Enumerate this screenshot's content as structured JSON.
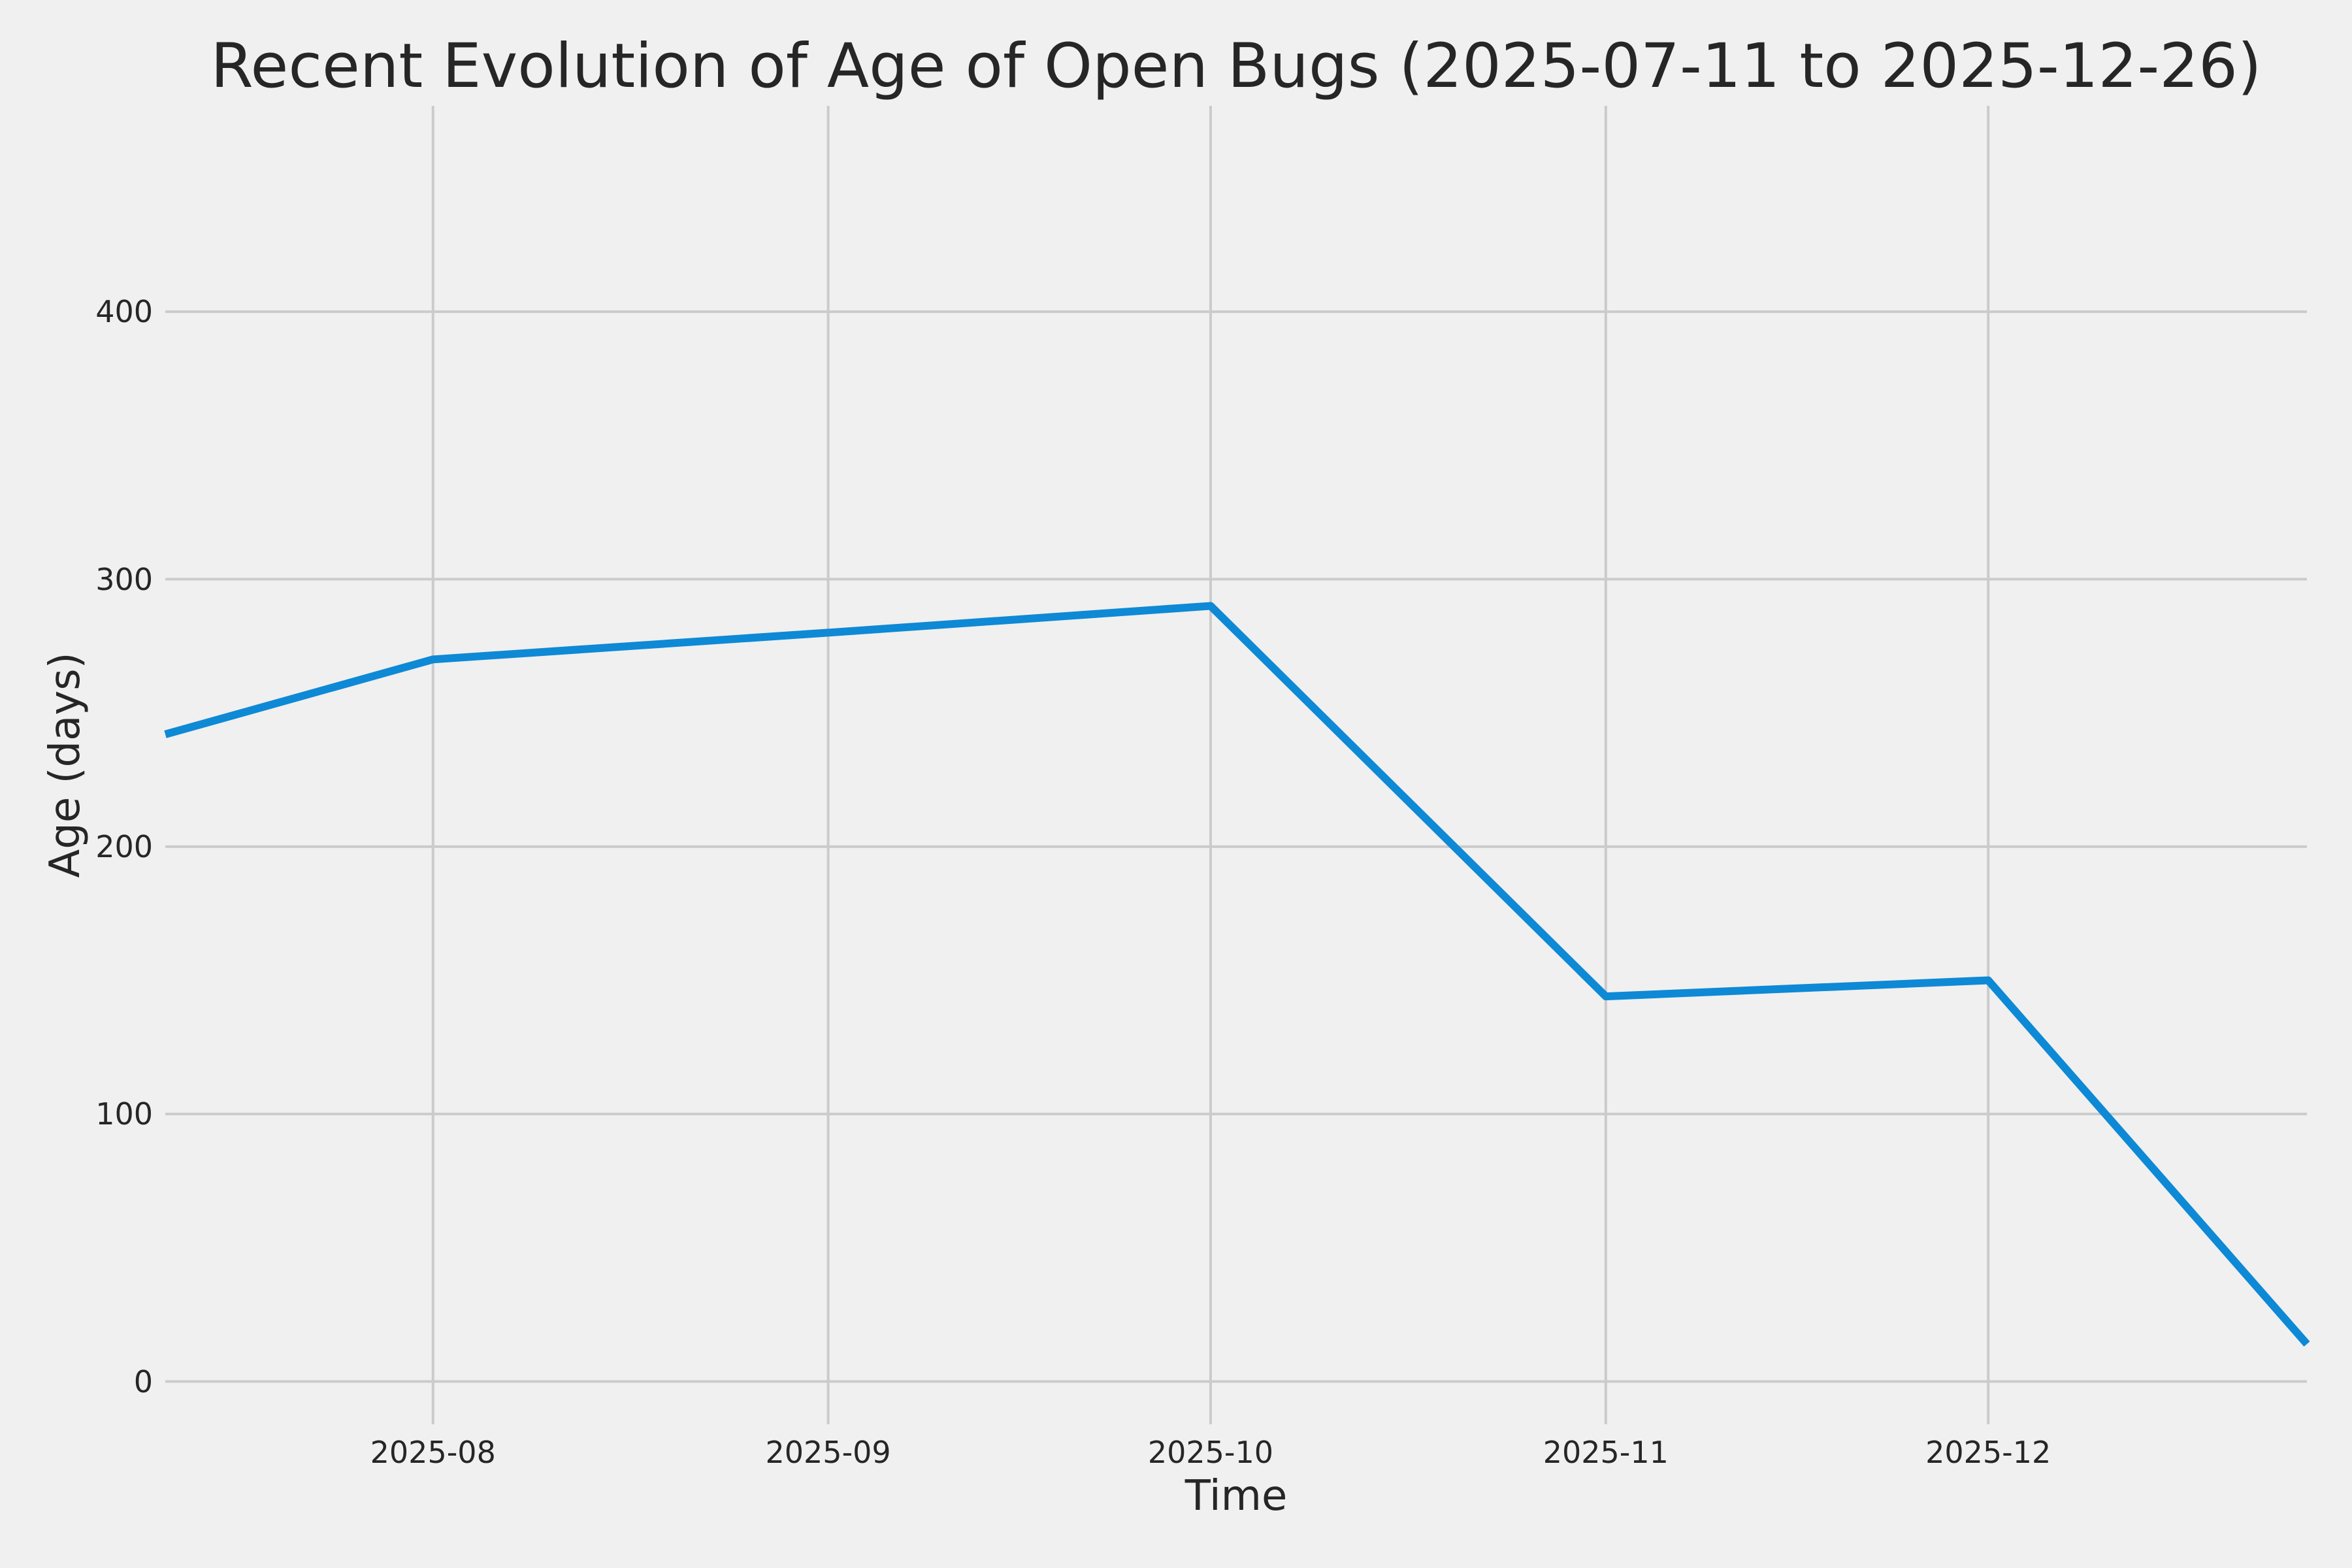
{
  "figure": {
    "background": "#f0f0f0"
  },
  "chart_data": {
    "type": "line",
    "title": "Recent Evolution of Age of Open Bugs (2025-07-11 to 2025-12-26)",
    "xlabel": "Time",
    "ylabel": "Age (days)",
    "x": [
      "2025-07-11",
      "2025-08-01",
      "2025-09-01",
      "2025-10-01",
      "2025-11-01",
      "2025-12-01",
      "2025-12-26"
    ],
    "values": [
      242,
      270,
      280,
      290,
      144,
      150,
      14
    ],
    "xticks": [
      {
        "date": "2025-08-01",
        "label": "2025-08"
      },
      {
        "date": "2025-09-01",
        "label": "2025-09"
      },
      {
        "date": "2025-10-01",
        "label": "2025-10"
      },
      {
        "date": "2025-11-01",
        "label": "2025-11"
      },
      {
        "date": "2025-12-01",
        "label": "2025-12"
      }
    ],
    "yticks": [
      0,
      100,
      200,
      300,
      400
    ],
    "xlim": [
      "2025-07-11",
      "2025-12-26"
    ],
    "ylim": [
      -16,
      477
    ],
    "grid": true,
    "legend": false,
    "line_color": "#0e89d5",
    "grid_color": "#cbcbcb",
    "text_color": "#262626",
    "background_color": "#f0f0f0",
    "line_width": 12
  }
}
